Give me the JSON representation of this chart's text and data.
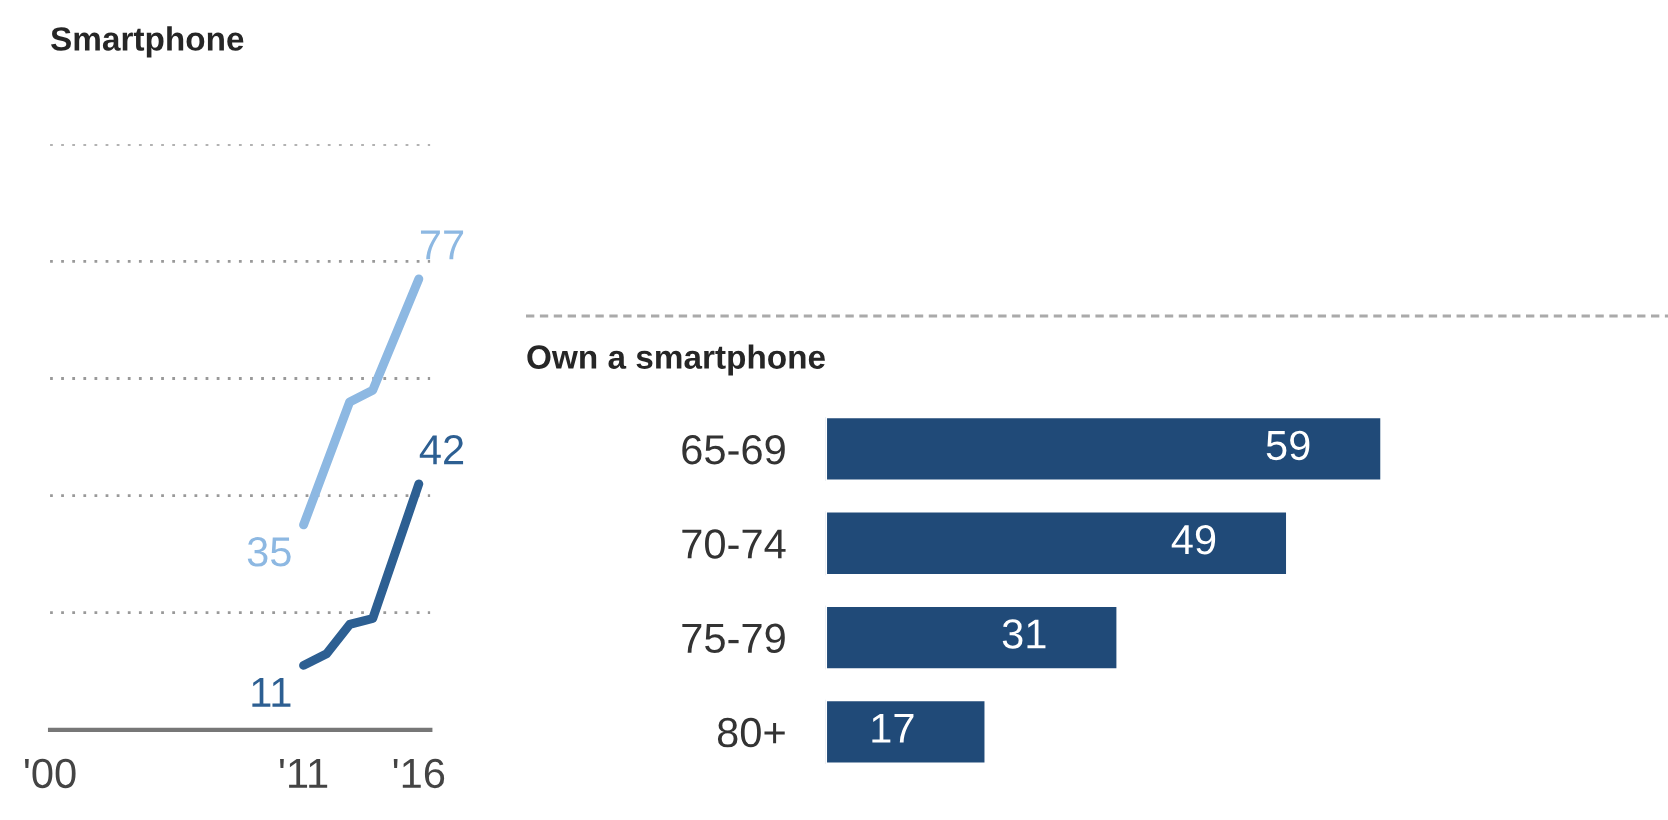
{
  "chart_data": [
    {
      "type": "line",
      "title": "Smartphone",
      "xlim": [
        2000,
        2016.5
      ],
      "xticks": [
        {
          "value": 2000,
          "label": "'00"
        },
        {
          "value": 2011,
          "label": "'11"
        },
        {
          "value": 2016,
          "label": "'16"
        }
      ],
      "ylim": [
        0,
        100
      ],
      "yticks": [
        {
          "value": 20,
          "label": null
        },
        {
          "value": 40,
          "label": null
        },
        {
          "value": 60,
          "label": null
        },
        {
          "value": 80,
          "label": null
        },
        {
          "value": 100,
          "label": null
        }
      ],
      "grid": "y",
      "tick_labels": "x",
      "legend": false,
      "series": [
        {
          "color": "#8db8e2",
          "x": [
            2011,
            2013,
            2014,
            2016
          ],
          "values": [
            35,
            56,
            58,
            77
          ],
          "value_labels": [
            "35",
            null,
            null,
            "77"
          ]
        },
        {
          "color": "#2d5f92",
          "x": [
            2011,
            2012,
            2013,
            2014,
            2016
          ],
          "values": [
            11,
            13,
            18,
            19,
            42
          ],
          "value_labels": [
            "11",
            null,
            null,
            null,
            "42"
          ]
        }
      ]
    },
    {
      "type": "bar",
      "orientation": "horizontal",
      "title": "Own a smartphone",
      "categories": [
        "65-69",
        "70-74",
        "75-79",
        "80+"
      ],
      "values": [
        59,
        49,
        31,
        17
      ],
      "color": "#204a78",
      "data_labels": true
    }
  ]
}
